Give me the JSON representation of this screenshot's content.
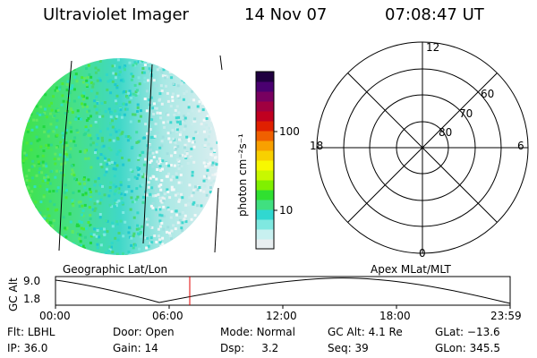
{
  "header": {
    "instrument": "Ultraviolet Imager",
    "date": "14 Nov 07",
    "time": "07:08:47 UT"
  },
  "colorbar": {
    "unit": "photon cm⁻²s⁻¹",
    "tick_labels": [
      "100",
      "10"
    ],
    "colors": [
      "#e8eef0",
      "#c8f0f0",
      "#7fe8e0",
      "#30d8d0",
      "#40e080",
      "#30e030",
      "#80f000",
      "#c8f800",
      "#f8f800",
      "#f8d000",
      "#f8a000",
      "#f06000",
      "#e02000",
      "#c00020",
      "#a00040",
      "#780060",
      "#4a0070",
      "#200040"
    ]
  },
  "labels": {
    "geo_map": "Geographic Lat/Lon",
    "apex_map": "Apex MLat/MLT"
  },
  "polar": {
    "mlt_labels": [
      "12",
      "18",
      "6",
      "0"
    ],
    "lat_labels": [
      "60",
      "70",
      "80"
    ]
  },
  "altitude_plot": {
    "ylabel": "GC Alt",
    "ytick_labels": [
      "9.0",
      "1.8"
    ],
    "xtick_labels": [
      "00:00",
      "06:00",
      "12:00",
      "18:00",
      "23:59"
    ],
    "marker_color": "#e00000"
  },
  "status": {
    "row1": [
      {
        "label": "Flt:",
        "value": "LBHL"
      },
      {
        "label": "Door:",
        "value": "Open"
      },
      {
        "label": "Mode:",
        "value": "Normal"
      },
      {
        "label": "GC Alt:",
        "value": "4.1 Re"
      },
      {
        "label": "GLat:",
        "value": "−13.6"
      }
    ],
    "row2": [
      {
        "label": "IP:",
        "value": "36.0"
      },
      {
        "label": "Gain:",
        "value": "14"
      },
      {
        "label": "Dsp:",
        "value": "3.2"
      },
      {
        "label": "Seq:",
        "value": "39"
      },
      {
        "label": "GLon:",
        "value": "345.5"
      }
    ]
  }
}
